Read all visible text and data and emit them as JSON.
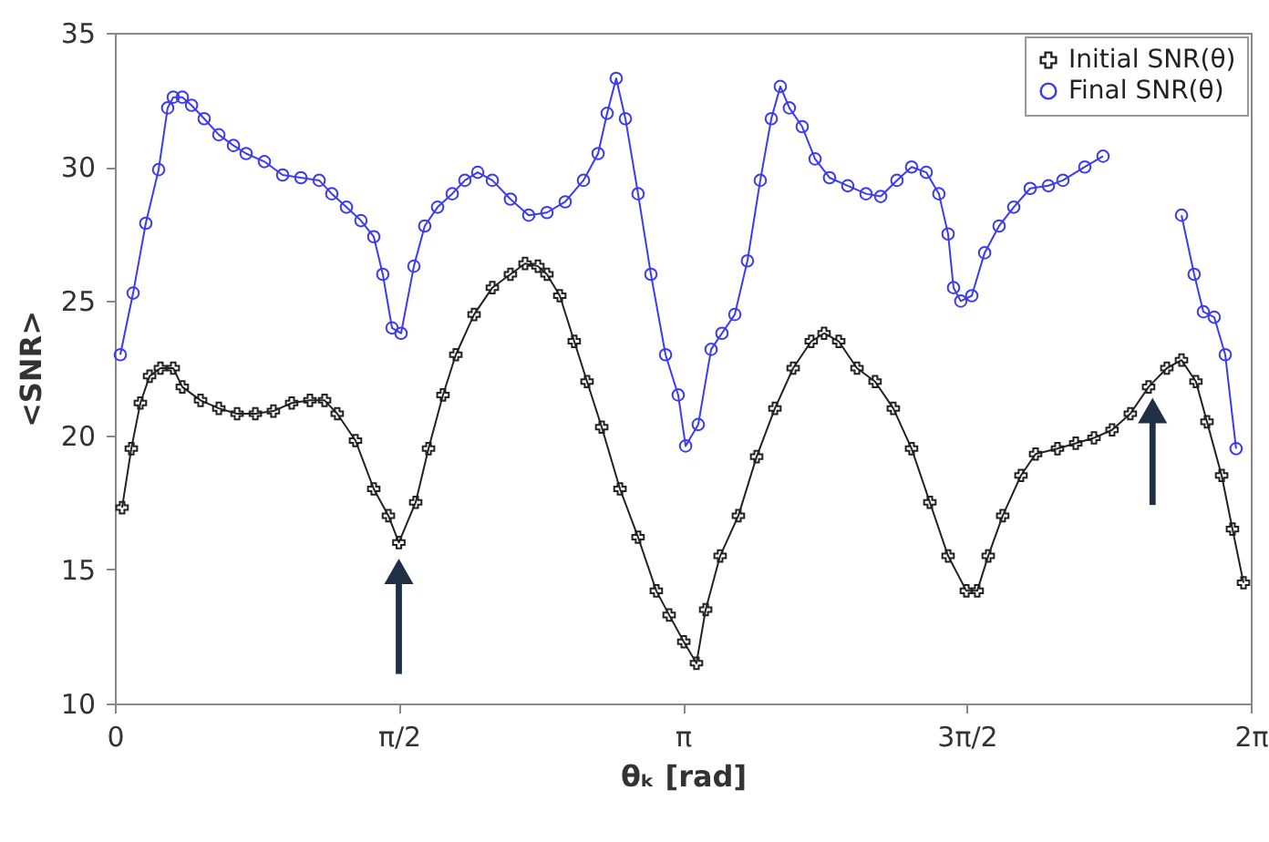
{
  "chart_data": {
    "type": "line",
    "xlabel": "θₖ [rad]",
    "ylabel": "<SNR>",
    "xlim": [
      0,
      6.2832
    ],
    "ylim": [
      10,
      35
    ],
    "xticks": [
      0,
      {
        "value": 1.5708,
        "label": "π/2"
      },
      {
        "value": 3.1416,
        "label": "π"
      },
      {
        "value": 4.7124,
        "label": "3π/2"
      },
      {
        "value": 6.2832,
        "label": "2π"
      }
    ],
    "yticks": [
      10,
      15,
      20,
      25,
      30,
      35
    ],
    "legend": "top right",
    "series": [
      {
        "name": "Initial SNR(θ)",
        "color": "#222222",
        "marker": "cross",
        "x": [
          0.04,
          0.091,
          0.141,
          0.192,
          0.252,
          0.323,
          0.373,
          0.474,
          0.575,
          0.676,
          0.777,
          0.877,
          0.978,
          1.079,
          1.16,
          1.23,
          1.331,
          1.432,
          1.513,
          1.571,
          1.664,
          1.735,
          1.815,
          1.886,
          1.987,
          2.088,
          2.188,
          2.269,
          2.34,
          2.39,
          2.461,
          2.541,
          2.612,
          2.693,
          2.794,
          2.894,
          2.995,
          3.066,
          3.147,
          3.217,
          3.268,
          3.348,
          3.449,
          3.55,
          3.651,
          3.752,
          3.852,
          3.923,
          4.004,
          4.105,
          4.205,
          4.306,
          4.407,
          4.508,
          4.609,
          4.71,
          4.77,
          4.831,
          4.911,
          5.012,
          5.093,
          5.214,
          5.315,
          5.416,
          5.516,
          5.617,
          5.718,
          5.819,
          5.9,
          5.98,
          6.041,
          6.122,
          6.182,
          6.243
        ],
        "values": [
          17.3,
          19.5,
          21.2,
          22.2,
          22.5,
          22.5,
          21.8,
          21.3,
          21.0,
          20.8,
          20.8,
          20.9,
          21.2,
          21.3,
          21.3,
          20.8,
          19.8,
          18.0,
          17.0,
          16.0,
          17.5,
          19.5,
          21.5,
          23.0,
          24.5,
          25.5,
          26.0,
          26.4,
          26.3,
          26.0,
          25.2,
          23.5,
          22.0,
          20.3,
          18.0,
          16.2,
          14.2,
          13.3,
          12.3,
          11.5,
          13.5,
          15.5,
          17.0,
          19.2,
          21.0,
          22.5,
          23.5,
          23.8,
          23.5,
          22.5,
          22.0,
          21.0,
          19.5,
          17.5,
          15.5,
          14.2,
          14.2,
          15.5,
          17.0,
          18.5,
          19.3,
          19.5,
          19.7,
          19.9,
          20.2,
          20.8,
          21.8,
          22.5,
          22.8,
          22.0,
          20.5,
          18.5,
          16.5,
          14.5
        ]
      },
      {
        "name": "Final SNR(θ)",
        "color": "#3b3bf5",
        "marker": "circle",
        "x": [
          0.03,
          0.101,
          0.171,
          0.242,
          0.292,
          0.323,
          0.373,
          0.424,
          0.494,
          0.575,
          0.656,
          0.726,
          0.827,
          0.928,
          1.029,
          1.13,
          1.2,
          1.281,
          1.361,
          1.432,
          1.482,
          1.533,
          1.583,
          1.654,
          1.714,
          1.785,
          1.866,
          1.936,
          2.007,
          2.088,
          2.188,
          2.289,
          2.39,
          2.491,
          2.592,
          2.673,
          2.723,
          2.773,
          2.824,
          2.894,
          2.965,
          3.046,
          3.116,
          3.157,
          3.227,
          3.298,
          3.358,
          3.429,
          3.499,
          3.57,
          3.631,
          3.681,
          3.731,
          3.802,
          3.873,
          3.953,
          4.054,
          4.155,
          4.236,
          4.326,
          4.407,
          4.488,
          4.558,
          4.609,
          4.639,
          4.679,
          4.74,
          4.811,
          4.891,
          4.972,
          5.063,
          5.164,
          5.244,
          5.365,
          5.466,
          5.617,
          5.769,
          5.9,
          5.97,
          6.021,
          6.081,
          6.142,
          6.202
        ],
        "values": [
          23.0,
          25.3,
          27.9,
          29.9,
          32.2,
          32.6,
          32.6,
          32.3,
          31.8,
          31.2,
          30.8,
          30.5,
          30.2,
          29.7,
          29.6,
          29.5,
          29.0,
          28.5,
          28.0,
          27.4,
          26.0,
          24.0,
          23.8,
          26.3,
          27.8,
          28.5,
          29.0,
          29.5,
          29.8,
          29.5,
          28.8,
          28.2,
          28.3,
          28.7,
          29.5,
          30.5,
          32.0,
          33.3,
          31.8,
          29.0,
          26.0,
          23.0,
          21.5,
          19.6,
          20.4,
          23.2,
          23.8,
          24.5,
          26.5,
          29.5,
          31.8,
          33.0,
          32.2,
          31.5,
          30.3,
          29.6,
          29.3,
          29.0,
          28.9,
          29.5,
          30.0,
          29.8,
          29.0,
          27.5,
          25.5,
          25.0,
          25.2,
          26.8,
          27.8,
          28.5,
          29.2,
          29.3,
          29.5,
          30.0,
          30.4,
          null,
          null,
          28.2,
          26.0,
          24.6,
          24.4,
          23.0,
          19.5
        ]
      }
    ]
  }
}
